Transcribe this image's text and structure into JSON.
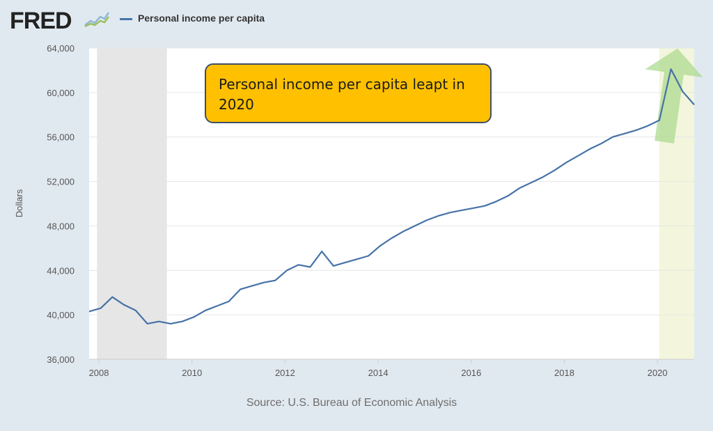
{
  "header": {
    "logo_text": "FRED",
    "legend_label": "Personal income per capita"
  },
  "annotation": {
    "text": "Personal income per capita leapt in 2020"
  },
  "source_text": "Source: U.S. Bureau of Economic Analysis",
  "colors": {
    "line": "#4572a7",
    "recession_shade": "#e6e6e6",
    "highlight_shade": "#f3f6dc",
    "arrow": "#a8d88a",
    "annotation_bg": "#ffc000",
    "background": "#e1e9f0"
  },
  "chart_data": {
    "type": "line",
    "ylabel": "Dollars",
    "ylim": [
      36000,
      64000
    ],
    "xlim": [
      2007.79,
      2020.79
    ],
    "yticks": [
      {
        "value": 36000,
        "label": "36,000"
      },
      {
        "value": 40000,
        "label": "40,000"
      },
      {
        "value": 44000,
        "label": "44,000"
      },
      {
        "value": 48000,
        "label": "48,000"
      },
      {
        "value": 52000,
        "label": "52,000"
      },
      {
        "value": 56000,
        "label": "56,000"
      },
      {
        "value": 60000,
        "label": "60,000"
      },
      {
        "value": 64000,
        "label": "64,000"
      }
    ],
    "xticks": [
      {
        "value": 2008,
        "label": "2008"
      },
      {
        "value": 2010,
        "label": "2010"
      },
      {
        "value": 2012,
        "label": "2012"
      },
      {
        "value": 2014,
        "label": "2014"
      },
      {
        "value": 2016,
        "label": "2016"
      },
      {
        "value": 2018,
        "label": "2018"
      },
      {
        "value": 2020,
        "label": "2020"
      }
    ],
    "grid": true,
    "shaded_ranges": [
      {
        "kind": "recession",
        "x0": 2007.96,
        "x1": 2009.46
      },
      {
        "kind": "highlight",
        "x0": 2020.04,
        "x1": 2020.79
      }
    ],
    "series": [
      {
        "name": "Personal income per capita",
        "x": [
          2007.79,
          2008.04,
          2008.29,
          2008.54,
          2008.79,
          2009.04,
          2009.29,
          2009.54,
          2009.79,
          2010.04,
          2010.29,
          2010.54,
          2010.79,
          2011.04,
          2011.29,
          2011.54,
          2011.79,
          2012.04,
          2012.29,
          2012.54,
          2012.79,
          2013.04,
          2013.29,
          2013.54,
          2013.79,
          2014.04,
          2014.29,
          2014.54,
          2014.79,
          2015.04,
          2015.29,
          2015.54,
          2015.79,
          2016.04,
          2016.29,
          2016.54,
          2016.79,
          2017.04,
          2017.29,
          2017.54,
          2017.79,
          2018.04,
          2018.29,
          2018.54,
          2018.79,
          2019.04,
          2019.29,
          2019.54,
          2019.79,
          2020.04,
          2020.29,
          2020.54,
          2020.79
        ],
        "values": [
          40300,
          40600,
          41600,
          40900,
          40400,
          39200,
          39400,
          39200,
          39400,
          39800,
          40400,
          40800,
          41200,
          42300,
          42600,
          42900,
          43100,
          44000,
          44500,
          44300,
          45700,
          44400,
          44700,
          45000,
          45300,
          46200,
          46900,
          47500,
          48000,
          48500,
          48900,
          49200,
          49400,
          49600,
          49800,
          50200,
          50700,
          51400,
          51900,
          52400,
          53000,
          53700,
          54300,
          54900,
          55400,
          56000,
          56300,
          56600,
          57000,
          57500,
          62100,
          60100,
          58900
        ]
      }
    ],
    "annotation_arrow": {
      "x": 2020.29,
      "y_from": 55500,
      "y_to": 64000
    }
  }
}
